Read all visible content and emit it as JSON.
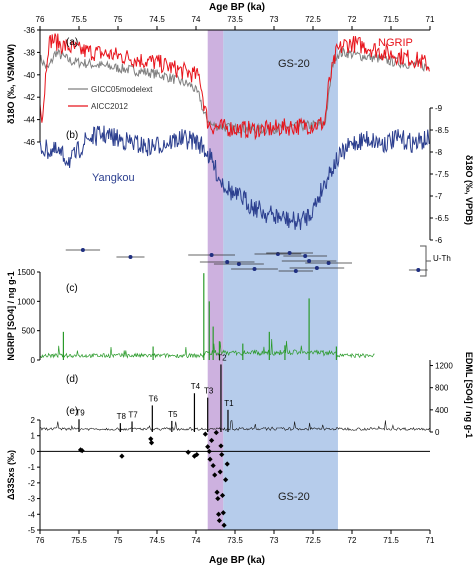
{
  "x_axis": {
    "title": "Age BP (ka)",
    "range": [
      76,
      71
    ],
    "ticks": [
      "76",
      "75.5",
      "75",
      "74.5",
      "74",
      "73.5",
      "73",
      "72.5",
      "72",
      "71.5",
      "71"
    ],
    "tick_values": [
      76,
      75.5,
      75,
      74.5,
      74,
      73.5,
      73,
      72.5,
      72,
      71.5,
      71
    ]
  },
  "shading": {
    "purple": {
      "from": 73.85,
      "to": 73.65,
      "color": "#c4a3d9"
    },
    "blue": {
      "from": 73.65,
      "to": 72.18,
      "color": "#a9c3e8"
    }
  },
  "colors": {
    "ngrip": "#e8141c",
    "gicc": "#808080",
    "yangkou": "#2c3f8f",
    "sulfate": "#2a9a2a",
    "edml": "#111111"
  },
  "chart_data": [
    {
      "panel": "a",
      "label": "(a)",
      "type": "line",
      "ylabel": "δ18O (‰, VSMOW)",
      "ylim": [
        -46,
        -36
      ],
      "yticks": [
        -36,
        -38,
        -40,
        -42,
        -44,
        -46
      ],
      "series_labels": {
        "ngrip": "NGRIP",
        "gicc": "GICC05modelext",
        "aicc": "AICC2012",
        "stadial": "GS-20"
      },
      "series": [
        {
          "name": "GICC05modelext",
          "x": [
            76,
            75.9,
            75.8,
            75.6,
            75.4,
            75.2,
            75.0,
            74.8,
            74.6,
            74.4,
            74.2,
            74.05,
            73.95,
            73.9,
            73.8,
            73.7,
            73.5,
            73.3,
            73.1,
            72.9,
            72.7,
            72.5,
            72.35,
            72.3,
            72.25,
            72.2,
            72.1,
            71.9,
            71.7,
            71.5,
            71.3,
            71.1,
            71
          ],
          "values": [
            -38.5,
            -39.5,
            -38,
            -38.8,
            -39,
            -39.2,
            -39.4,
            -39.6,
            -39.8,
            -40.1,
            -40.6,
            -41,
            -42,
            -43.5,
            -44.5,
            -44.6,
            -44.8,
            -44.8,
            -44.9,
            -44.7,
            -44.6,
            -44.5,
            -44.4,
            -42,
            -39,
            -38.2,
            -38,
            -38.3,
            -38.5,
            -38.8,
            -39,
            -39.2,
            -39.4
          ]
        },
        {
          "name": "AICC2012",
          "x": [
            76,
            75.97,
            75.9,
            75.85,
            75.7,
            75.5,
            75.3,
            75.1,
            74.9,
            74.7,
            74.5,
            74.3,
            74.1,
            73.95,
            73.9,
            73.85,
            73.8,
            73.7,
            73.5,
            73.3,
            73.1,
            72.9,
            72.7,
            72.5,
            72.35,
            72.3,
            72.2,
            72.1,
            72.0,
            71.8,
            71.6,
            71.4,
            71.2,
            71.05,
            71
          ],
          "values": [
            -42,
            -44,
            -37.5,
            -36.8,
            -37.4,
            -37.8,
            -38.0,
            -38.2,
            -38.4,
            -38.7,
            -38.9,
            -39.4,
            -39.8,
            -40.2,
            -42.5,
            -44.2,
            -44.6,
            -44.7,
            -44.8,
            -44.9,
            -44.9,
            -44.7,
            -44.6,
            -44.5,
            -44.3,
            -41,
            -38,
            -37.3,
            -37.2,
            -37.5,
            -38,
            -38.3,
            -38.6,
            -39,
            -39.4
          ]
        }
      ]
    },
    {
      "panel": "b",
      "label": "(b)",
      "type": "line",
      "ylabel": "δ18O (‰, VPDB)",
      "ylim": [
        -9,
        -6
      ],
      "yticks": [
        -9,
        -8.5,
        -8,
        -7.5,
        -7,
        -6.5,
        -6
      ],
      "series_label": "Yangkou",
      "series": [
        {
          "name": "Yangkou",
          "x": [
            76,
            75.8,
            75.6,
            75.4,
            75.2,
            75.0,
            74.8,
            74.6,
            74.4,
            74.2,
            74.0,
            73.9,
            73.8,
            73.7,
            73.6,
            73.5,
            73.4,
            73.3,
            73.2,
            73.1,
            73.0,
            72.9,
            72.8,
            72.7,
            72.6,
            72.5,
            72.4,
            72.3,
            72.2,
            72.1,
            72.0,
            71.8,
            71.6,
            71.4,
            71.2,
            71.0
          ],
          "values": [
            -8.1,
            -8.0,
            -7.8,
            -8.3,
            -8.4,
            -8.3,
            -8.2,
            -8.1,
            -8.2,
            -8.3,
            -8.25,
            -8.1,
            -7.8,
            -7.4,
            -7.2,
            -7.0,
            -6.95,
            -6.8,
            -6.7,
            -6.6,
            -6.55,
            -6.5,
            -6.45,
            -6.4,
            -6.5,
            -6.7,
            -7.1,
            -7.5,
            -7.8,
            -8.0,
            -8.2,
            -8.3,
            -8.2,
            -8.3,
            -8.2,
            -8.3
          ]
        }
      ]
    },
    {
      "panel": "u-th",
      "type": "scatter",
      "label": "U-Th",
      "points": [
        {
          "x": 75.45,
          "err": 0.22
        },
        {
          "x": 74.84,
          "err": 0.18
        },
        {
          "x": 73.45,
          "err": 0.32
        },
        {
          "x": 72.72,
          "err": 0.22
        },
        {
          "x": 72.6,
          "err": 0.28
        },
        {
          "x": 72.3,
          "err": 0.3
        },
        {
          "x": 71.15,
          "err": 0.12
        },
        {
          "x": 73.8,
          "err": 0.3
        },
        {
          "x": 73.6,
          "err": 0.35
        },
        {
          "x": 73.25,
          "err": 0.3
        },
        {
          "x": 72.95,
          "err": 0.3
        },
        {
          "x": 72.55,
          "err": 0.35
        },
        {
          "x": 72.45,
          "err": 0.35
        },
        {
          "x": 72.8,
          "err": 0.3
        }
      ]
    },
    {
      "panel": "c",
      "label": "(c)",
      "type": "line",
      "ylabel": "NGRIP [SO4] / ng g-1",
      "ylim": [
        0,
        1500
      ],
      "yticks": [
        0,
        500,
        1000,
        1500
      ],
      "spikes": [
        {
          "x": 75.7,
          "value": 480
        },
        {
          "x": 74.55,
          "value": 230
        },
        {
          "x": 73.9,
          "value": 1480
        },
        {
          "x": 73.83,
          "value": 1000
        },
        {
          "x": 73.78,
          "value": 570
        },
        {
          "x": 73.7,
          "value": 320
        },
        {
          "x": 73.4,
          "value": 280
        },
        {
          "x": 73.06,
          "value": 480
        },
        {
          "x": 72.86,
          "value": 250
        },
        {
          "x": 72.55,
          "value": 1050
        },
        {
          "x": 72.2,
          "value": 230
        }
      ]
    },
    {
      "panel": "d",
      "label": "(d)",
      "type": "line",
      "ylabel": "EDML [SO4] / ng g-1",
      "ylim": [
        0,
        1300
      ],
      "yticks": [
        0,
        400,
        800,
        1200
      ],
      "events": [
        {
          "name": "T9",
          "x": 75.5,
          "value": 230
        },
        {
          "name": "T8",
          "x": 74.97,
          "value": 160
        },
        {
          "name": "T7",
          "x": 74.82,
          "value": 190
        },
        {
          "name": "T6",
          "x": 74.56,
          "value": 480
        },
        {
          "name": "T5",
          "x": 74.31,
          "value": 200
        },
        {
          "name": "T4",
          "x": 74.02,
          "value": 700
        },
        {
          "name": "T3",
          "x": 73.85,
          "value": 620
        },
        {
          "name": "T2",
          "x": 73.68,
          "value": 1220
        },
        {
          "name": "T1",
          "x": 73.59,
          "value": 400
        }
      ]
    },
    {
      "panel": "e",
      "label": "(e)",
      "type": "scatter",
      "ylabel": "Δ33Sxs (‰)",
      "ylim": [
        -5,
        2
      ],
      "yticks": [
        2,
        1,
        0,
        -1,
        -2,
        -3,
        -4,
        -5
      ],
      "stadial_label": "GS-20",
      "points": [
        {
          "x": 75.48,
          "y": 0.1
        },
        {
          "x": 75.46,
          "y": 0.05
        },
        {
          "x": 74.95,
          "y": -0.3
        },
        {
          "x": 74.58,
          "y": 0.8
        },
        {
          "x": 74.57,
          "y": 0.55
        },
        {
          "x": 74.1,
          "y": -0.05
        },
        {
          "x": 74.02,
          "y": -0.3
        },
        {
          "x": 73.99,
          "y": -0.2
        },
        {
          "x": 73.88,
          "y": 1.1
        },
        {
          "x": 73.85,
          "y": 0.3
        },
        {
          "x": 73.83,
          "y": 0.0
        },
        {
          "x": 73.82,
          "y": -0.5
        },
        {
          "x": 73.8,
          "y": 0.7
        },
        {
          "x": 73.78,
          "y": -0.9
        },
        {
          "x": 73.76,
          "y": -1.5
        },
        {
          "x": 73.74,
          "y": 1.2
        },
        {
          "x": 73.73,
          "y": -2.6
        },
        {
          "x": 73.72,
          "y": -3.0
        },
        {
          "x": 73.71,
          "y": -4.0
        },
        {
          "x": 73.7,
          "y": -4.4
        },
        {
          "x": 73.69,
          "y": -1.3
        },
        {
          "x": 73.68,
          "y": 0.35
        },
        {
          "x": 73.67,
          "y": -0.2
        },
        {
          "x": 73.66,
          "y": -2.8
        },
        {
          "x": 73.65,
          "y": -3.9
        },
        {
          "x": 73.64,
          "y": -4.7
        },
        {
          "x": 73.62,
          "y": -1.8
        },
        {
          "x": 73.6,
          "y": -0.8
        }
      ]
    }
  ]
}
